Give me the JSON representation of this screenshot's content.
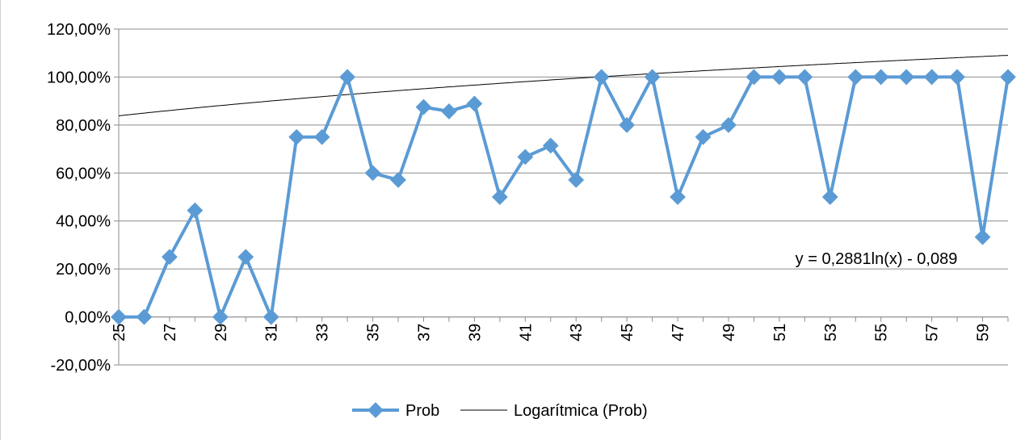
{
  "chart_data": {
    "type": "line",
    "title": "",
    "xlabel": "",
    "ylabel": "",
    "x": [
      25,
      26,
      27,
      28,
      29,
      30,
      31,
      32,
      33,
      34,
      35,
      36,
      37,
      38,
      39,
      40,
      41,
      42,
      43,
      44,
      45,
      46,
      47,
      48,
      49,
      50,
      51,
      52,
      53,
      54,
      55,
      56,
      57,
      58,
      59,
      60
    ],
    "x_tick_labels": [
      "25",
      "27",
      "29",
      "31",
      "33",
      "35",
      "37",
      "39",
      "41",
      "43",
      "45",
      "47",
      "49",
      "51",
      "53",
      "55",
      "57",
      "59"
    ],
    "y_tick_labels": [
      "120,00%",
      "100,00%",
      "80,00%",
      "60,00%",
      "40,00%",
      "20,00%",
      "0,00%",
      "-20,00%"
    ],
    "ylim": [
      -0.2,
      1.2
    ],
    "y_ticks": [
      1.2,
      1.0,
      0.8,
      0.6,
      0.4,
      0.2,
      0.0,
      -0.2
    ],
    "grid": true,
    "legend_position": "bottom",
    "series": [
      {
        "name": "Prob",
        "color": "#5b9bd5",
        "marker": "diamond",
        "values": [
          0.0,
          0.0,
          0.25,
          0.444,
          0.0,
          0.25,
          0.0,
          0.75,
          0.75,
          1.0,
          0.6,
          0.571,
          0.875,
          0.857,
          0.889,
          0.5,
          0.667,
          0.714,
          0.571,
          1.0,
          0.8,
          1.0,
          0.5,
          0.75,
          0.8,
          1.0,
          1.0,
          1.0,
          0.5,
          1.0,
          1.0,
          1.0,
          1.0,
          1.0,
          0.333,
          1.0
        ]
      },
      {
        "name": "Logarítmica (Prob)",
        "color": "#000000",
        "type": "trendline-log",
        "coef_a": 0.2881,
        "coef_b": -0.089
      }
    ],
    "annotations": [
      {
        "text": "y = 0,2881ln(x) - 0,089"
      }
    ]
  }
}
